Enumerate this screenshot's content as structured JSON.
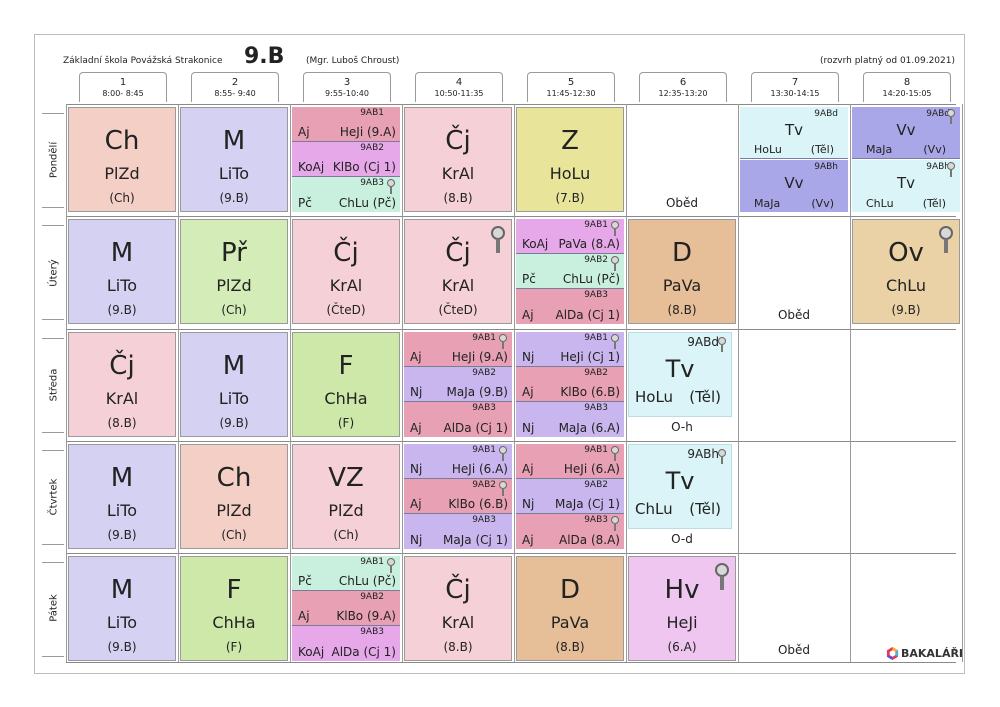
{
  "header": {
    "school": "Základní škola Povážská Strakonice",
    "class": "9.B",
    "teacher": "(Mgr. Luboš Chroust)",
    "validity": "(rozvrh platný od 01.09.2021)"
  },
  "periods": [
    {
      "num": "1",
      "time": "8:00- 8:45"
    },
    {
      "num": "2",
      "time": "8:55- 9:40"
    },
    {
      "num": "3",
      "time": "9:55-10:40"
    },
    {
      "num": "4",
      "time": "10:50-11:35"
    },
    {
      "num": "5",
      "time": "11:45-12:30"
    },
    {
      "num": "6",
      "time": "12:35-13:20"
    },
    {
      "num": "7",
      "time": "13:30-14:15"
    },
    {
      "num": "8",
      "time": "14:20-15:05"
    }
  ],
  "days": [
    "Pondělí",
    "Úterý",
    "Středa",
    "Čtvrtek",
    "Pátek"
  ],
  "lunch": "Oběd",
  "cells": {
    "mon1": {
      "subject": "Ch",
      "teacher": "PlZd",
      "room": "(Ch)"
    },
    "mon2": {
      "subject": "M",
      "teacher": "LiTo",
      "room": "(9.B)"
    },
    "mon4": {
      "subject": "Čj",
      "teacher": "KrAl",
      "room": "(8.B)"
    },
    "mon5": {
      "subject": "Z",
      "teacher": "HoLu",
      "room": "(7.B)"
    },
    "tue1": {
      "subject": "M",
      "teacher": "LiTo",
      "room": "(9.B)"
    },
    "tue2": {
      "subject": "Př",
      "teacher": "PlZd",
      "room": "(Ch)"
    },
    "tue3": {
      "subject": "Čj",
      "teacher": "KrAl",
      "room": "(ČteD)"
    },
    "tue4": {
      "subject": "Čj",
      "teacher": "KrAl",
      "room": "(ČteD)"
    },
    "tue6": {
      "subject": "D",
      "teacher": "PaVa",
      "room": "(8.B)"
    },
    "tue8": {
      "subject": "Ov",
      "teacher": "ChLu",
      "room": "(9.B)"
    },
    "wed1": {
      "subject": "Čj",
      "teacher": "KrAl",
      "room": "(8.B)"
    },
    "wed2": {
      "subject": "M",
      "teacher": "LiTo",
      "room": "(9.B)"
    },
    "wed3": {
      "subject": "F",
      "teacher": "ChHa",
      "room": "(F)"
    },
    "thu1": {
      "subject": "M",
      "teacher": "LiTo",
      "room": "(9.B)"
    },
    "thu2": {
      "subject": "Ch",
      "teacher": "PlZd",
      "room": "(Ch)"
    },
    "thu3": {
      "subject": "VZ",
      "teacher": "PlZd",
      "room": "(Ch)"
    },
    "fri1": {
      "subject": "M",
      "teacher": "LiTo",
      "room": "(9.B)"
    },
    "fri2": {
      "subject": "F",
      "teacher": "ChHa",
      "room": "(F)"
    },
    "fri4": {
      "subject": "Čj",
      "teacher": "KrAl",
      "room": "(8.B)"
    },
    "fri5": {
      "subject": "D",
      "teacher": "PaVa",
      "room": "(8.B)"
    },
    "fri6": {
      "subject": "Hv",
      "teacher": "HeJi",
      "room": "(6.A)"
    }
  },
  "groups": {
    "mon3": [
      {
        "group": "9AB1",
        "subject": "Aj",
        "detail": "HeJi (9.A)"
      },
      {
        "group": "9AB2",
        "subject": "KoAj",
        "detail": "KlBo (Cj 1)"
      },
      {
        "group": "9AB3",
        "subject": "Pč",
        "detail": "ChLu (Pč)"
      }
    ],
    "tue5": [
      {
        "group": "9AB1",
        "subject": "KoAj",
        "detail": "PaVa (8.A)"
      },
      {
        "group": "9AB2",
        "subject": "Pč",
        "detail": "ChLu (Pč)"
      },
      {
        "group": "9AB3",
        "subject": "Aj",
        "detail": "AlDa (Cj 1)"
      }
    ],
    "wed4": [
      {
        "group": "9AB1",
        "subject": "Aj",
        "detail": "HeJi (9.A)"
      },
      {
        "group": "9AB2",
        "subject": "Nj",
        "detail": "MaJa (9.B)"
      },
      {
        "group": "9AB3",
        "subject": "Aj",
        "detail": "AlDa (Cj 1)"
      }
    ],
    "wed5": [
      {
        "group": "9AB1",
        "subject": "Nj",
        "detail": "HeJi (Cj 1)"
      },
      {
        "group": "9AB2",
        "subject": "Aj",
        "detail": "KlBo (6.B)"
      },
      {
        "group": "9AB3",
        "subject": "Nj",
        "detail": "MaJa (6.A)"
      }
    ],
    "thu4": [
      {
        "group": "9AB1",
        "subject": "Nj",
        "detail": "HeJi (6.A)"
      },
      {
        "group": "9AB2",
        "subject": "Aj",
        "detail": "KlBo (6.B)"
      },
      {
        "group": "9AB3",
        "subject": "Nj",
        "detail": "MaJa (Cj 1)"
      }
    ],
    "thu5": [
      {
        "group": "9AB1",
        "subject": "Aj",
        "detail": "HeJi (6.A)"
      },
      {
        "group": "9AB2",
        "subject": "Nj",
        "detail": "MaJa (Cj 1)"
      },
      {
        "group": "9AB3",
        "subject": "Aj",
        "detail": "AlDa (8.A)"
      }
    ],
    "fri3": [
      {
        "group": "9AB1",
        "subject": "Pč",
        "detail": "ChLu (Pč)"
      },
      {
        "group": "9AB2",
        "subject": "Aj",
        "detail": "KlBo (9.A)"
      },
      {
        "group": "9AB3",
        "subject": "KoAj",
        "detail": "AlDa (Cj 1)"
      }
    ]
  },
  "pe": {
    "mon7": [
      {
        "group": "9ABd",
        "subject": "Tv",
        "teacher": "HoLu",
        "room": "(Těl)"
      },
      {
        "group": "9ABh",
        "subject": "Vv",
        "teacher": "MaJa",
        "room": "(Vv)"
      }
    ],
    "mon8": [
      {
        "group": "9ABd",
        "subject": "Vv",
        "teacher": "MaJa",
        "room": "(Vv)"
      },
      {
        "group": "9ABh",
        "subject": "Tv",
        "teacher": "ChLu",
        "room": "(Těl)"
      }
    ],
    "wed6": {
      "group": "9ABd",
      "subject": "Tv",
      "teacher": "HoLu",
      "room": "(Těl)",
      "note": "O-h"
    },
    "thu6": {
      "group": "9ABh",
      "subject": "Tv",
      "teacher": "ChLu",
      "room": "(Těl)",
      "note": "O-d"
    }
  },
  "footer": {
    "brand": "BAKALÁŘI"
  },
  "colors": {
    "pink": "#f5d0d6",
    "salmon": "#f4cfc6",
    "lavender": "#d4d1f2",
    "yellow": "#e8e59a",
    "green": "#d4edb8",
    "limegreen": "#cde8a8",
    "tan": "#e6bf98",
    "ov": "#ead2a6",
    "hv": "#efc6f0",
    "lilac": "#c9b6ee",
    "magenta": "#e6a8e8",
    "mint": "#c9efdf",
    "rose": "#e8a0b4",
    "cyan": "#dbf4f7",
    "blue": "#aaa7e8"
  }
}
